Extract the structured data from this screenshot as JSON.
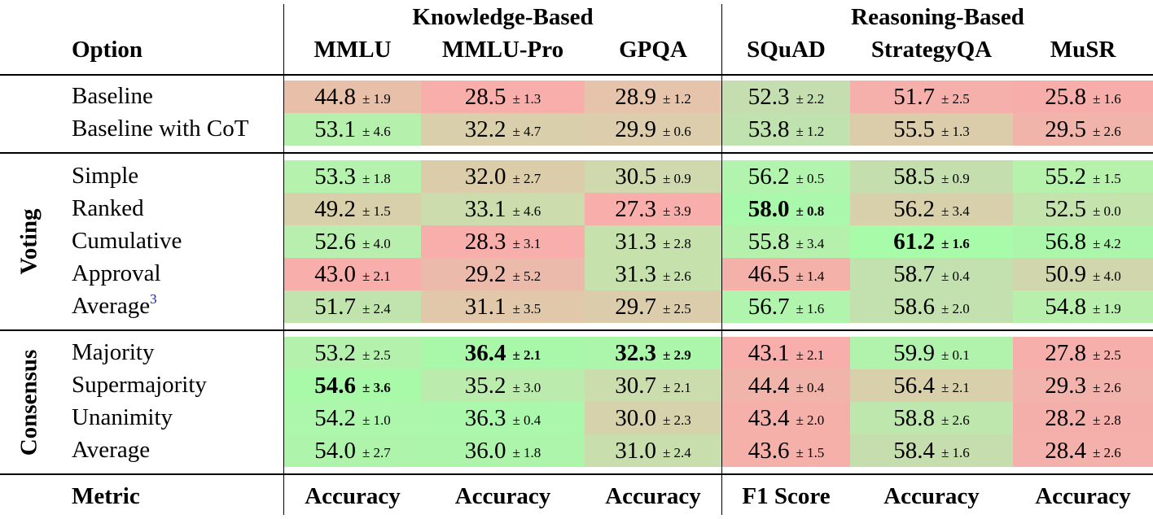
{
  "header": {
    "option_label": "Option",
    "groups": [
      "Knowledge-Based",
      "Reasoning-Based"
    ],
    "columns": [
      "MMLU",
      "MMLU-Pro",
      "GPQA",
      "SQuAD",
      "StrategyQA",
      "MuSR"
    ]
  },
  "sections": [
    {
      "title": "",
      "rows": [
        {
          "label": "Baseline",
          "sup": "",
          "cells": [
            {
              "v": "44.8",
              "e": "± 1.9",
              "bg": "#e8bfa8"
            },
            {
              "v": "28.5",
              "e": "± 1.3",
              "bg": "#f8aeaa"
            },
            {
              "v": "28.9",
              "e": "± 1.2",
              "bg": "#e6c4ab"
            },
            {
              "v": "52.3",
              "e": "± 2.2",
              "bg": "#c4deb0"
            },
            {
              "v": "51.7",
              "e": "± 2.5",
              "bg": "#f6b0ab"
            },
            {
              "v": "25.8",
              "e": "± 1.6",
              "bg": "#f7aeaa"
            }
          ]
        },
        {
          "label": "Baseline with CoT",
          "sup": "",
          "cells": [
            {
              "v": "53.1",
              "e": "± 4.6",
              "bg": "#b5f1ad"
            },
            {
              "v": "32.2",
              "e": "± 4.7",
              "bg": "#d9cfaa"
            },
            {
              "v": "29.9",
              "e": "± 0.6",
              "bg": "#dcceac"
            },
            {
              "v": "53.8",
              "e": "± 1.2",
              "bg": "#c0e2ae"
            },
            {
              "v": "55.5",
              "e": "± 1.3",
              "bg": "#dbcdaa"
            },
            {
              "v": "29.5",
              "e": "± 2.6",
              "bg": "#f1b4ab"
            }
          ]
        }
      ]
    },
    {
      "title": "Voting",
      "rows": [
        {
          "label": "Simple",
          "sup": "",
          "cells": [
            {
              "v": "53.3",
              "e": "± 1.8",
              "bg": "#b4f2ad"
            },
            {
              "v": "32.0",
              "e": "± 2.7",
              "bg": "#dbcdaa"
            },
            {
              "v": "30.5",
              "e": "± 0.9",
              "bg": "#cfd9ad"
            },
            {
              "v": "56.2",
              "e": "± 0.5",
              "bg": "#b2f3ad"
            },
            {
              "v": "58.5",
              "e": "± 0.9",
              "bg": "#c5deae"
            },
            {
              "v": "55.2",
              "e": "± 1.5",
              "bg": "#b7f2ad"
            }
          ]
        },
        {
          "label": "Ranked",
          "sup": "",
          "cells": [
            {
              "v": "49.2",
              "e": "± 1.5",
              "bg": "#d8cfab"
            },
            {
              "v": "33.1",
              "e": "± 4.6",
              "bg": "#ccdcac"
            },
            {
              "v": "27.3",
              "e": "± 3.9",
              "bg": "#f8aeaa"
            },
            {
              "v": "58.0",
              "e": "± 0.8",
              "bg": "#a9f8ab",
              "best": true
            },
            {
              "v": "56.2",
              "e": "± 3.4",
              "bg": "#d8cfab"
            },
            {
              "v": "52.5",
              "e": "± 0.0",
              "bg": "#c4e3ad"
            }
          ]
        },
        {
          "label": "Cumulative",
          "sup": "",
          "cells": [
            {
              "v": "52.6",
              "e": "± 4.0",
              "bg": "#b8eeae"
            },
            {
              "v": "28.3",
              "e": "± 3.1",
              "bg": "#f8aeaa"
            },
            {
              "v": "31.3",
              "e": "± 2.8",
              "bg": "#c6e1ac"
            },
            {
              "v": "55.8",
              "e": "± 3.4",
              "bg": "#b5f1ad"
            },
            {
              "v": "61.2",
              "e": "± 1.6",
              "bg": "#a8fba9",
              "best": true
            },
            {
              "v": "56.8",
              "e": "± 4.2",
              "bg": "#abf6aa"
            }
          ]
        },
        {
          "label": "Approval",
          "sup": "",
          "cells": [
            {
              "v": "43.0",
              "e": "± 2.1",
              "bg": "#f8aeaa"
            },
            {
              "v": "29.2",
              "e": "± 5.2",
              "bg": "#ecbaab"
            },
            {
              "v": "31.3",
              "e": "± 2.6",
              "bg": "#c6e1ac"
            },
            {
              "v": "46.5",
              "e": "± 1.4",
              "bg": "#f4b1aa"
            },
            {
              "v": "58.7",
              "e": "± 0.4",
              "bg": "#c2e1ae"
            },
            {
              "v": "50.9",
              "e": "± 4.0",
              "bg": "#d2d6ac"
            }
          ]
        },
        {
          "label": "Average",
          "sup": "3",
          "cells": [
            {
              "v": "51.7",
              "e": "± 2.4",
              "bg": "#c1e3ad"
            },
            {
              "v": "31.1",
              "e": "± 3.5",
              "bg": "#e1c8ab"
            },
            {
              "v": "29.7",
              "e": "± 2.5",
              "bg": "#dbcdab"
            },
            {
              "v": "56.7",
              "e": "± 1.6",
              "bg": "#b1f4ad"
            },
            {
              "v": "58.6",
              "e": "± 2.0",
              "bg": "#c3e1ae"
            },
            {
              "v": "54.8",
              "e": "± 1.9",
              "bg": "#b9efad"
            }
          ]
        }
      ]
    },
    {
      "title": "Consensus",
      "rows": [
        {
          "label": "Majority",
          "sup": "",
          "cells": [
            {
              "v": "53.2",
              "e": "± 2.5",
              "bg": "#b4f1ad"
            },
            {
              "v": "36.4",
              "e": "± 2.1",
              "bg": "#a9f8aa",
              "best": true
            },
            {
              "v": "32.3",
              "e": "± 2.9",
              "bg": "#abf6aa",
              "best": true
            },
            {
              "v": "43.1",
              "e": "± 2.1",
              "bg": "#f8aeaa"
            },
            {
              "v": "59.9",
              "e": "± 0.1",
              "bg": "#b1f3ad"
            },
            {
              "v": "27.8",
              "e": "± 2.5",
              "bg": "#f6afaa"
            }
          ]
        },
        {
          "label": "Supermajority",
          "sup": "",
          "cells": [
            {
              "v": "54.6",
              "e": "± 3.6",
              "bg": "#a8faa9",
              "best": true
            },
            {
              "v": "35.2",
              "e": "± 3.0",
              "bg": "#bbebad"
            },
            {
              "v": "30.7",
              "e": "± 2.1",
              "bg": "#cbdcad"
            },
            {
              "v": "44.4",
              "e": "± 0.4",
              "bg": "#f1b4ab"
            },
            {
              "v": "56.4",
              "e": "± 2.1",
              "bg": "#d8cfab"
            },
            {
              "v": "29.3",
              "e": "± 2.6",
              "bg": "#f1b3ab"
            }
          ]
        },
        {
          "label": "Unanimity",
          "sup": "",
          "cells": [
            {
              "v": "54.2",
              "e": "± 1.0",
              "bg": "#acf7ab"
            },
            {
              "v": "36.3",
              "e": "± 0.4",
              "bg": "#abf7ab"
            },
            {
              "v": "30.0",
              "e": "± 2.3",
              "bg": "#d6d2ac"
            },
            {
              "v": "43.4",
              "e": "± 2.0",
              "bg": "#f6b0aa"
            },
            {
              "v": "58.8",
              "e": "± 2.6",
              "bg": "#bde7ad"
            },
            {
              "v": "28.2",
              "e": "± 2.8",
              "bg": "#f5afaa"
            }
          ]
        },
        {
          "label": "Average",
          "sup": "",
          "cells": [
            {
              "v": "54.0",
              "e": "± 2.7",
              "bg": "#aef5ab"
            },
            {
              "v": "36.0",
              "e": "± 1.8",
              "bg": "#adf5ab"
            },
            {
              "v": "31.0",
              "e": "± 2.4",
              "bg": "#c8deac"
            },
            {
              "v": "43.6",
              "e": "± 1.5",
              "bg": "#f5b0aa"
            },
            {
              "v": "58.4",
              "e": "± 1.6",
              "bg": "#c6deae"
            },
            {
              "v": "28.4",
              "e": "± 2.6",
              "bg": "#f4b0aa"
            }
          ]
        }
      ]
    }
  ],
  "footer": {
    "metric_label": "Metric",
    "metrics": [
      "Accuracy",
      "Accuracy",
      "Accuracy",
      "F1 Score",
      "Accuracy",
      "Accuracy"
    ]
  }
}
